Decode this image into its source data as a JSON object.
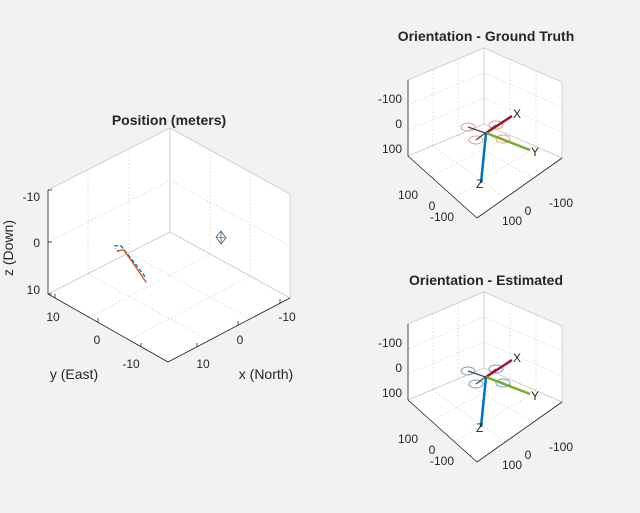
{
  "chart_data": [
    {
      "type": "line",
      "projection": "3d",
      "title": "Position (meters)",
      "xlabel": "x (North)",
      "ylabel": "y (East)",
      "zlabel": "z (Down)",
      "xlim": [
        -15,
        15
      ],
      "ylim": [
        -15,
        15
      ],
      "zlim": [
        -10,
        10
      ],
      "z_reversed": true,
      "grid": true,
      "xticks": [
        "-10",
        "0",
        "10"
      ],
      "yticks": [
        "10",
        "0",
        "-10"
      ],
      "zticks": [
        "-10",
        "0",
        "10"
      ],
      "series": [
        {
          "color": "#0072bd",
          "dashed": true,
          "x": [
            -3.0,
            0.0,
            3.0,
            5.5,
            6.5
          ],
          "y": [
            -9.0,
            -9.5,
            -9.0,
            -8.0,
            -6.8
          ],
          "z": [
            1.0,
            -1.5,
            -2.5,
            -1.0,
            0.5
          ]
        },
        {
          "color": "#d95319",
          "dashed": false,
          "x": [
            -3.3,
            -0.5,
            2.5,
            5.0,
            6.0
          ],
          "y": [
            -9.0,
            -9.3,
            -8.8,
            -7.8,
            -6.6
          ],
          "z": [
            2.0,
            -0.5,
            -1.8,
            -0.2,
            1.0
          ]
        }
      ]
    },
    {
      "type": "scatter",
      "projection": "3d",
      "title": "Orientation - Ground Truth",
      "xlim": [
        -150,
        150
      ],
      "ylim": [
        -150,
        150
      ],
      "zlim": [
        -150,
        150
      ],
      "z_reversed": true,
      "xticks": [
        "-100",
        "0",
        "100"
      ],
      "yticks": [
        "100",
        "0",
        "-100"
      ],
      "zticks": [
        "-100",
        "0",
        "100"
      ],
      "axes_labels": [
        "X",
        "Y",
        "Z"
      ],
      "rotor_color": "#d9a37f"
    },
    {
      "type": "scatter",
      "projection": "3d",
      "title": "Orientation - Estimated",
      "xlim": [
        -150,
        150
      ],
      "ylim": [
        -150,
        150
      ],
      "zlim": [
        -150,
        150
      ],
      "z_reversed": true,
      "xticks": [
        "-100",
        "0",
        "100"
      ],
      "yticks": [
        "100",
        "0",
        "-100"
      ],
      "zticks": [
        "-100",
        "0",
        "100"
      ],
      "axes_labels": [
        "X",
        "Y",
        "Z"
      ],
      "rotor_color": "#a9c4e0"
    }
  ],
  "colors": {
    "x_axis": "#a2142f",
    "y_axis": "#77ac30",
    "z_axis": "#0072bd"
  }
}
